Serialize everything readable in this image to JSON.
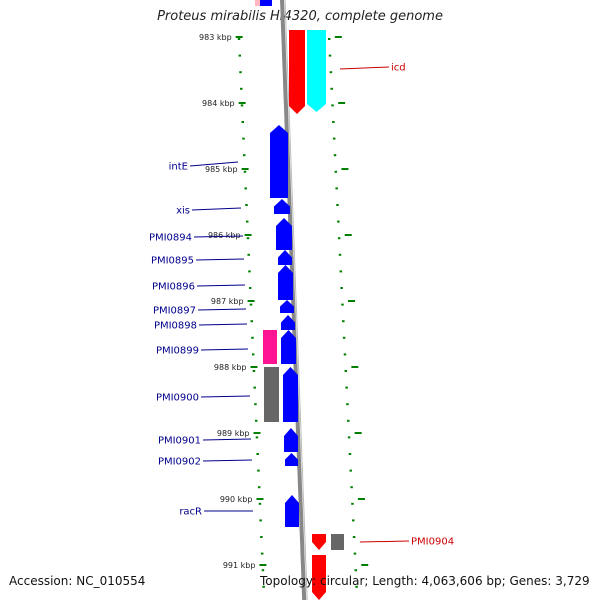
{
  "title": "Proteus mirabilis HI4320, complete genome",
  "accession_text": "Accession: NC_010554",
  "topology_text": "Topology: circular; Length: 4,063,606 bp; Genes: 3,729",
  "colors": {
    "forward_label": "#00008b",
    "reverse_label": "#cc0000",
    "backbone": "#888888",
    "tick": "#008000",
    "cds_blue": "#0000ff",
    "cds_red": "#ff0000",
    "cds_cyan": "#00ffff",
    "cds_gray": "#666666",
    "cds_pink": "#ff1493"
  },
  "tick_labels": [
    "983 kbp",
    "984 kbp",
    "985 kbp",
    "986 kbp",
    "987 kbp",
    "988 kbp",
    "989 kbp",
    "990 kbp",
    "991 kbp"
  ],
  "gene_labels": [
    {
      "name": "icd",
      "strand": "reverse"
    },
    {
      "name": "intE",
      "strand": "forward"
    },
    {
      "name": "xis",
      "strand": "forward"
    },
    {
      "name": "PMI0894",
      "strand": "forward"
    },
    {
      "name": "PMI0895",
      "strand": "forward"
    },
    {
      "name": "PMI0896",
      "strand": "forward"
    },
    {
      "name": "PMI0897",
      "strand": "forward"
    },
    {
      "name": "PMI0898",
      "strand": "forward"
    },
    {
      "name": "PMI0899",
      "strand": "forward"
    },
    {
      "name": "PMI0900",
      "strand": "forward"
    },
    {
      "name": "PMI0901",
      "strand": "forward"
    },
    {
      "name": "PMI0902",
      "strand": "forward"
    },
    {
      "name": "racR",
      "strand": "forward"
    },
    {
      "name": "PMI0904",
      "strand": "reverse"
    }
  ]
}
